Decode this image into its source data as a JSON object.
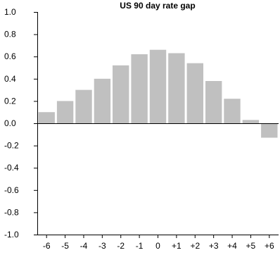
{
  "chart_data": {
    "type": "bar",
    "title": "US 90 day rate gap",
    "xlabel": "",
    "ylabel": "",
    "categories": [
      "-6",
      "-5",
      "-4",
      "-3",
      "-2",
      "-1",
      "0",
      "+1",
      "+2",
      "+3",
      "+4",
      "+5",
      "+6"
    ],
    "values": [
      0.1,
      0.2,
      0.3,
      0.4,
      0.52,
      0.62,
      0.66,
      0.63,
      0.54,
      0.38,
      0.22,
      0.03,
      -0.13
    ],
    "ylim": [
      -1.0,
      1.0
    ],
    "yticks": [
      "1.0",
      "0.8",
      "0.6",
      "0.4",
      "0.2",
      "0.0",
      "-0.2",
      "-0.4",
      "-0.6",
      "-0.8",
      "-1.0"
    ],
    "ytick_values": [
      1.0,
      0.8,
      0.6,
      0.4,
      0.2,
      0.0,
      -0.2,
      -0.4,
      -0.6,
      -0.8,
      -1.0
    ],
    "bar_color": "#c0c0c0",
    "grid": false,
    "legend": "none"
  }
}
